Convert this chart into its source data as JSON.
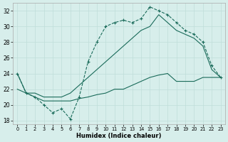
{
  "xlabel": "Humidex (Indice chaleur)",
  "xlim": [
    -0.5,
    23.5
  ],
  "ylim": [
    17.5,
    33.0
  ],
  "xticks": [
    0,
    1,
    2,
    3,
    4,
    5,
    6,
    7,
    8,
    9,
    10,
    11,
    12,
    13,
    14,
    15,
    16,
    17,
    18,
    19,
    20,
    21,
    22,
    23
  ],
  "yticks": [
    18,
    20,
    22,
    24,
    26,
    28,
    30,
    32
  ],
  "bg_color": "#d7eeeb",
  "grid_color": "#c0ddd9",
  "line_color": "#1a6b5a",
  "line_dashed_x": [
    0,
    1,
    2,
    3,
    4,
    5,
    6,
    7,
    8,
    9,
    10,
    11,
    12,
    13,
    14,
    15,
    16,
    17,
    18,
    19,
    20,
    21,
    22,
    23
  ],
  "line_dashed_y": [
    24.0,
    21.5,
    21.0,
    20.0,
    19.0,
    19.5,
    18.2,
    21.0,
    25.5,
    28.0,
    30.0,
    30.5,
    30.8,
    30.5,
    31.0,
    32.5,
    32.0,
    31.5,
    30.5,
    29.5,
    29.0,
    28.0,
    25.0,
    23.5
  ],
  "line_solid_high_x": [
    0,
    1,
    2,
    3,
    4,
    5,
    6,
    7,
    8,
    9,
    10,
    11,
    12,
    13,
    14,
    15,
    16,
    17,
    18,
    19,
    20,
    21,
    22,
    23
  ],
  "line_solid_high_y": [
    24.0,
    21.5,
    21.5,
    21.0,
    21.0,
    21.0,
    21.5,
    22.5,
    23.5,
    24.5,
    25.5,
    26.5,
    27.5,
    28.5,
    29.5,
    30.0,
    31.5,
    30.5,
    29.5,
    29.0,
    28.5,
    27.5,
    24.5,
    23.5
  ],
  "line_solid_low_x": [
    0,
    1,
    2,
    3,
    4,
    5,
    6,
    7,
    8,
    9,
    10,
    11,
    12,
    13,
    14,
    15,
    16,
    17,
    18,
    19,
    20,
    21,
    22,
    23
  ],
  "line_solid_low_y": [
    22.0,
    21.5,
    21.0,
    20.5,
    20.5,
    20.5,
    20.5,
    20.8,
    21.0,
    21.3,
    21.5,
    22.0,
    22.0,
    22.5,
    23.0,
    23.5,
    23.8,
    24.0,
    23.0,
    23.0,
    23.0,
    23.5,
    23.5,
    23.5
  ]
}
